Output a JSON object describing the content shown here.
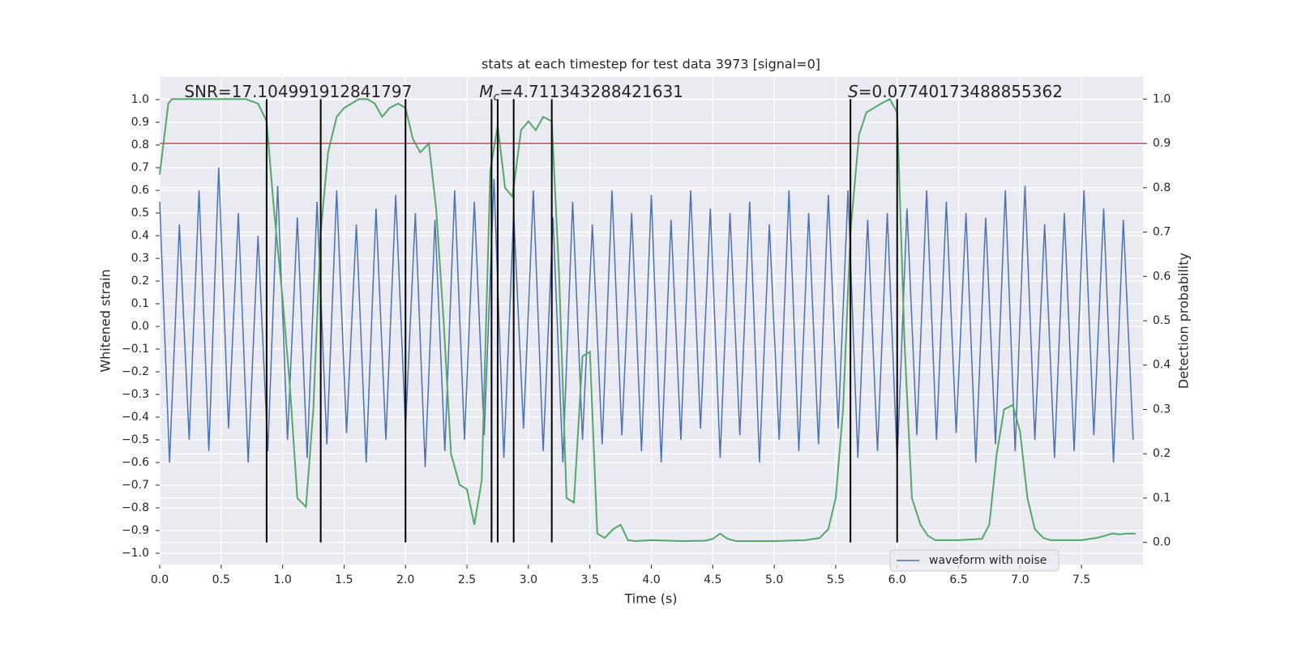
{
  "chart_data": {
    "type": "line",
    "title": "stats at each timestep for test data 3973 [signal=0]",
    "xlabel": "Time (s)",
    "ylabel": "Whitened strain",
    "y2label": "Detection probability",
    "xlim": [
      0,
      8
    ],
    "ylim": [
      -1.05,
      1.1
    ],
    "y2lim": [
      -0.05,
      1.05
    ],
    "grid": true,
    "legend": "lower right",
    "xticks": [
      {
        "value": 0,
        "label": "0.0"
      },
      {
        "value": 0.5,
        "label": "0.5"
      },
      {
        "value": 1,
        "label": "1.0"
      },
      {
        "value": 1.5,
        "label": "1.5"
      },
      {
        "value": 2,
        "label": "2.0"
      },
      {
        "value": 2.5,
        "label": "2.5"
      },
      {
        "value": 3,
        "label": "3.0"
      },
      {
        "value": 3.5,
        "label": "3.5"
      },
      {
        "value": 4,
        "label": "4.0"
      },
      {
        "value": 4.5,
        "label": "4.5"
      },
      {
        "value": 5,
        "label": "5.0"
      },
      {
        "value": 5.5,
        "label": "5.5"
      },
      {
        "value": 6,
        "label": "6.0"
      },
      {
        "value": 6.5,
        "label": "6.5"
      },
      {
        "value": 7,
        "label": "7.0"
      },
      {
        "value": 7.5,
        "label": "7.5"
      }
    ],
    "yticks": [
      {
        "value": -1,
        "label": "−1.0"
      },
      {
        "value": -0.9,
        "label": "−0.9"
      },
      {
        "value": -0.8,
        "label": "−0.8"
      },
      {
        "value": -0.7,
        "label": "−0.7"
      },
      {
        "value": -0.6,
        "label": "−0.6"
      },
      {
        "value": -0.5,
        "label": "−0.5"
      },
      {
        "value": -0.4,
        "label": "−0.4"
      },
      {
        "value": -0.3,
        "label": "−0.3"
      },
      {
        "value": -0.2,
        "label": "−0.2"
      },
      {
        "value": -0.1,
        "label": "−0.1"
      },
      {
        "value": 0,
        "label": "0.0"
      },
      {
        "value": 0.1,
        "label": "0.1"
      },
      {
        "value": 0.2,
        "label": "0.2"
      },
      {
        "value": 0.3,
        "label": "0.3"
      },
      {
        "value": 0.4,
        "label": "0.4"
      },
      {
        "value": 0.5,
        "label": "0.5"
      },
      {
        "value": 0.6,
        "label": "0.6"
      },
      {
        "value": 0.7,
        "label": "0.7"
      },
      {
        "value": 0.8,
        "label": "0.8"
      },
      {
        "value": 0.9,
        "label": "0.9"
      },
      {
        "value": 1,
        "label": "1.0"
      }
    ],
    "y2ticks": [
      {
        "value": 0,
        "label": "0.0"
      },
      {
        "value": 0.1,
        "label": "0.1"
      },
      {
        "value": 0.2,
        "label": "0.2"
      },
      {
        "value": 0.3,
        "label": "0.3"
      },
      {
        "value": 0.4,
        "label": "0.4"
      },
      {
        "value": 0.5,
        "label": "0.5"
      },
      {
        "value": 0.6,
        "label": "0.6"
      },
      {
        "value": 0.7,
        "label": "0.7"
      },
      {
        "value": 0.8,
        "label": "0.8"
      },
      {
        "value": 0.9,
        "label": "0.9"
      },
      {
        "value": 1,
        "label": "1.0"
      }
    ],
    "annotations": [
      {
        "text": "SNR=17.104991912841797",
        "x": 0.2
      },
      {
        "symbol": "M",
        "subscript": "c",
        "text": "=4.711343288421631",
        "x": 2.6
      },
      {
        "symbol": "S",
        "text": "=0.07740173488855362",
        "x": 5.6
      }
    ],
    "series": [
      {
        "name": "waveform with noise",
        "color": "#4c72b0",
        "axis": "y",
        "x": [
          0,
          0.08,
          0.16,
          0.24,
          0.32,
          0.4,
          0.48,
          0.56,
          0.64,
          0.72,
          0.8,
          0.88,
          0.96,
          1.04,
          1.12,
          1.2,
          1.28,
          1.36,
          1.44,
          1.52,
          1.6,
          1.68,
          1.76,
          1.84,
          1.92,
          2,
          2.08,
          2.16,
          2.24,
          2.32,
          2.4,
          2.48,
          2.56,
          2.64,
          2.72,
          2.8,
          2.88,
          2.96,
          3.04,
          3.12,
          3.2,
          3.28,
          3.36,
          3.44,
          3.52,
          3.6,
          3.68,
          3.76,
          3.84,
          3.92,
          4,
          4.08,
          4.16,
          4.24,
          4.32,
          4.4,
          4.48,
          4.56,
          4.64,
          4.72,
          4.8,
          4.88,
          4.96,
          5.04,
          5.12,
          5.2,
          5.28,
          5.36,
          5.44,
          5.52,
          5.6,
          5.68,
          5.76,
          5.84,
          5.92,
          6,
          6.08,
          6.16,
          6.24,
          6.32,
          6.4,
          6.48,
          6.56,
          6.64,
          6.72,
          6.8,
          6.88,
          6.96,
          7.04,
          7.12,
          7.2,
          7.28,
          7.36,
          7.44,
          7.52,
          7.6,
          7.68,
          7.76,
          7.84,
          7.92
        ],
        "values": [
          0.55,
          -0.6,
          0.45,
          -0.5,
          0.6,
          -0.55,
          0.7,
          -0.45,
          0.5,
          -0.6,
          0.4,
          -0.55,
          0.62,
          -0.5,
          0.48,
          -0.58,
          0.55,
          -0.52,
          0.6,
          -0.47,
          0.45,
          -0.6,
          0.52,
          -0.5,
          0.58,
          -0.45,
          0.5,
          -0.62,
          0.47,
          -0.55,
          0.6,
          -0.5,
          0.55,
          -0.48,
          0.65,
          -0.58,
          0.5,
          -0.45,
          0.6,
          -0.55,
          0.48,
          -0.6,
          0.55,
          -0.5,
          0.45,
          -0.52,
          0.6,
          -0.48,
          0.5,
          -0.55,
          0.58,
          -0.6,
          0.47,
          -0.5,
          0.6,
          -0.45,
          0.52,
          -0.58,
          0.5,
          -0.48,
          0.55,
          -0.6,
          0.45,
          -0.5,
          0.6,
          -0.55,
          0.5,
          -0.52,
          0.58,
          -0.45,
          0.6,
          -0.58,
          0.47,
          -0.55,
          0.5,
          -0.6,
          0.52,
          -0.48,
          0.6,
          -0.5,
          0.55,
          -0.47,
          0.5,
          -0.6,
          0.48,
          -0.52,
          0.6,
          -0.55,
          0.62,
          -0.5,
          0.45,
          -0.58,
          0.5,
          -0.55,
          0.6,
          -0.48,
          0.52,
          -0.6,
          0.47,
          -0.5
        ]
      },
      {
        "color": "#55a868",
        "axis": "y2",
        "x": [
          0,
          0.07,
          0.1,
          0.3,
          0.5,
          0.7,
          0.8,
          0.87,
          0.93,
          1.0,
          1.06,
          1.12,
          1.19,
          1.25,
          1.31,
          1.37,
          1.44,
          1.5,
          1.56,
          1.62,
          1.69,
          1.75,
          1.81,
          1.87,
          1.94,
          2.0,
          2.06,
          2.12,
          2.19,
          2.25,
          2.31,
          2.37,
          2.44,
          2.5,
          2.56,
          2.62,
          2.69,
          2.75,
          2.81,
          2.87,
          2.94,
          3.0,
          3.06,
          3.12,
          3.19,
          3.25,
          3.31,
          3.37,
          3.44,
          3.5,
          3.56,
          3.62,
          3.69,
          3.75,
          3.81,
          3.87,
          4.0,
          4.25,
          4.44,
          4.5,
          4.56,
          4.62,
          4.69,
          5.0,
          5.25,
          5.37,
          5.44,
          5.5,
          5.56,
          5.62,
          5.69,
          5.75,
          5.81,
          5.87,
          5.94,
          6.0,
          6.06,
          6.12,
          6.19,
          6.25,
          6.31,
          6.5,
          6.69,
          6.75,
          6.81,
          6.87,
          6.94,
          7.0,
          7.06,
          7.12,
          7.19,
          7.25,
          7.5,
          7.62,
          7.69,
          7.75,
          7.81,
          7.87,
          7.94
        ],
        "values": [
          0.83,
          0.99,
          1.0,
          1.0,
          1.0,
          1.0,
          0.99,
          0.95,
          0.75,
          0.55,
          0.35,
          0.1,
          0.08,
          0.3,
          0.7,
          0.88,
          0.96,
          0.98,
          0.99,
          1.0,
          1.0,
          0.99,
          0.96,
          0.98,
          0.99,
          0.98,
          0.91,
          0.88,
          0.9,
          0.75,
          0.5,
          0.2,
          0.13,
          0.12,
          0.04,
          0.14,
          0.84,
          0.94,
          0.8,
          0.78,
          0.93,
          0.95,
          0.93,
          0.96,
          0.95,
          0.6,
          0.1,
          0.09,
          0.42,
          0.43,
          0.02,
          0.01,
          0.03,
          0.04,
          0.005,
          0.003,
          0.005,
          0.003,
          0.004,
          0.008,
          0.02,
          0.008,
          0.003,
          0.003,
          0.005,
          0.01,
          0.03,
          0.1,
          0.3,
          0.7,
          0.92,
          0.97,
          0.98,
          0.99,
          1.0,
          0.97,
          0.45,
          0.1,
          0.04,
          0.015,
          0.005,
          0.005,
          0.008,
          0.04,
          0.2,
          0.3,
          0.31,
          0.25,
          0.1,
          0.03,
          0.01,
          0.005,
          0.005,
          0.01,
          0.015,
          0.02,
          0.018,
          0.02,
          0.02
        ]
      }
    ],
    "hlines": [
      {
        "value": 0.9,
        "axis": "y2",
        "color": "#c44e52"
      }
    ],
    "vlines": {
      "x": [
        0.87,
        1.31,
        2.0,
        2.7,
        2.75,
        2.88,
        3.19,
        5.62,
        6.0
      ],
      "axis": "y2",
      "range": [
        0,
        1
      ],
      "color": "#000000"
    }
  }
}
